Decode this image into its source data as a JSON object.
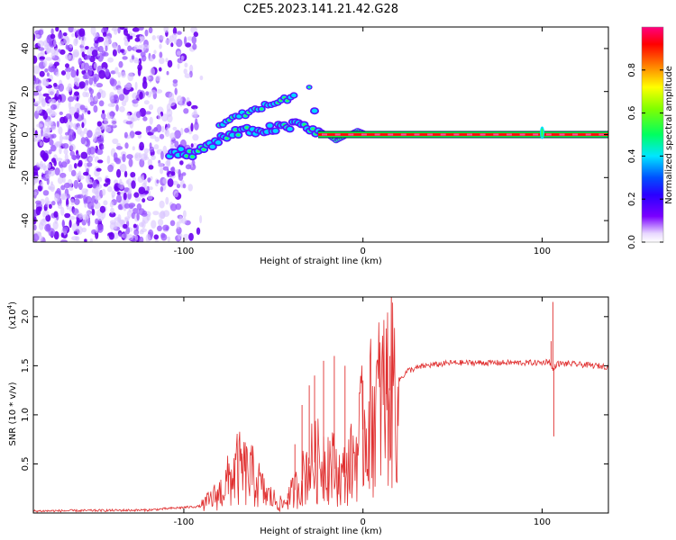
{
  "figure": {
    "title": "C2E5.2023.141.21.42.G28"
  },
  "chart_data": [
    {
      "type": "heatmap",
      "xlabel": "Height of straight line (km)",
      "ylabel": "Frequency (Hz)",
      "xlim": [
        -184,
        137
      ],
      "ylim": [
        -50,
        50
      ],
      "x_ticks": [
        -100,
        0,
        100
      ],
      "y_ticks": [
        -40,
        -20,
        0,
        20,
        40
      ],
      "colorbar": {
        "label": "Normalized spectral amplitude",
        "range": [
          0,
          1
        ],
        "ticks": [
          0.0,
          0.2,
          0.4,
          0.6,
          0.8
        ],
        "colors": [
          "#ffffff",
          "#7a00ff",
          "#0000ff",
          "#00ffff",
          "#00ff00",
          "#ffff00",
          "#ff0000",
          "#ff00a0"
        ]
      },
      "trace_knots": [
        {
          "x": -108,
          "y": -8
        },
        {
          "x": -95,
          "y": -9
        },
        {
          "x": -85,
          "y": -5
        },
        {
          "x": -75,
          "y": 0
        },
        {
          "x": -60,
          "y": 2
        },
        {
          "x": -45,
          "y": 3
        },
        {
          "x": -35,
          "y": 5
        },
        {
          "x": -27,
          "y": 1
        },
        {
          "x": -20,
          "y": 0
        },
        {
          "x": -15,
          "y": -3
        },
        {
          "x": -8,
          "y": 0
        },
        {
          "x": -3,
          "y": 2
        },
        {
          "x": 3,
          "y": 0
        },
        {
          "x": 137,
          "y": 0
        }
      ],
      "upper_branch_knots": [
        {
          "x": -80,
          "y": 5
        },
        {
          "x": -62,
          "y": 11
        },
        {
          "x": -48,
          "y": 15
        },
        {
          "x": -38,
          "y": 18
        }
      ],
      "carrier": {
        "x_start": -25,
        "x_end": 137,
        "frequency": 0
      },
      "noise_region_x": [
        -184,
        -98
      ]
    },
    {
      "type": "line",
      "xlabel": "Height of straight line (km)",
      "ylabel": "SNR (10 * v/v)",
      "y_scale_label": "(x10^4)",
      "xlim": [
        -184,
        137
      ],
      "ylim": [
        0,
        2.2
      ],
      "x_ticks": [
        -100,
        0,
        100
      ],
      "y_ticks": [
        0.5,
        1.0,
        1.5,
        2.0
      ],
      "color": "#e03030",
      "envelope": {
        "x": [
          -184,
          -120,
          -90,
          -80,
          -70,
          -60,
          -55,
          -45,
          -35,
          -30,
          -20,
          -12,
          -5,
          0,
          10,
          20,
          25,
          35,
          50,
          80,
          100,
          104,
          106,
          108,
          115,
          137
        ],
        "y": [
          0.02,
          0.03,
          0.07,
          0.2,
          0.45,
          0.35,
          0.2,
          0.08,
          0.3,
          0.5,
          0.55,
          0.35,
          0.55,
          0.85,
          1.15,
          1.35,
          1.45,
          1.5,
          1.53,
          1.53,
          1.53,
          1.55,
          1.45,
          1.52,
          1.52,
          1.49
        ]
      },
      "spikes": [
        {
          "x": -42,
          "y": 0.2
        },
        {
          "x": -38,
          "y": 0.7
        },
        {
          "x": -34,
          "y": 1.1
        },
        {
          "x": -30,
          "y": 1.3
        },
        {
          "x": -27,
          "y": 1.4
        },
        {
          "x": -22,
          "y": 1.55
        },
        {
          "x": -16,
          "y": 1.6
        },
        {
          "x": -10,
          "y": 1.5
        },
        {
          "x": 0,
          "y": 1.35
        },
        {
          "x": 13,
          "y": 1.55
        },
        {
          "x": 15,
          "y": 1.6
        },
        {
          "x": 105,
          "y": 1.75
        },
        {
          "x": 106,
          "y": 2.15
        },
        {
          "x": 106.5,
          "y": 0.78
        }
      ]
    }
  ]
}
